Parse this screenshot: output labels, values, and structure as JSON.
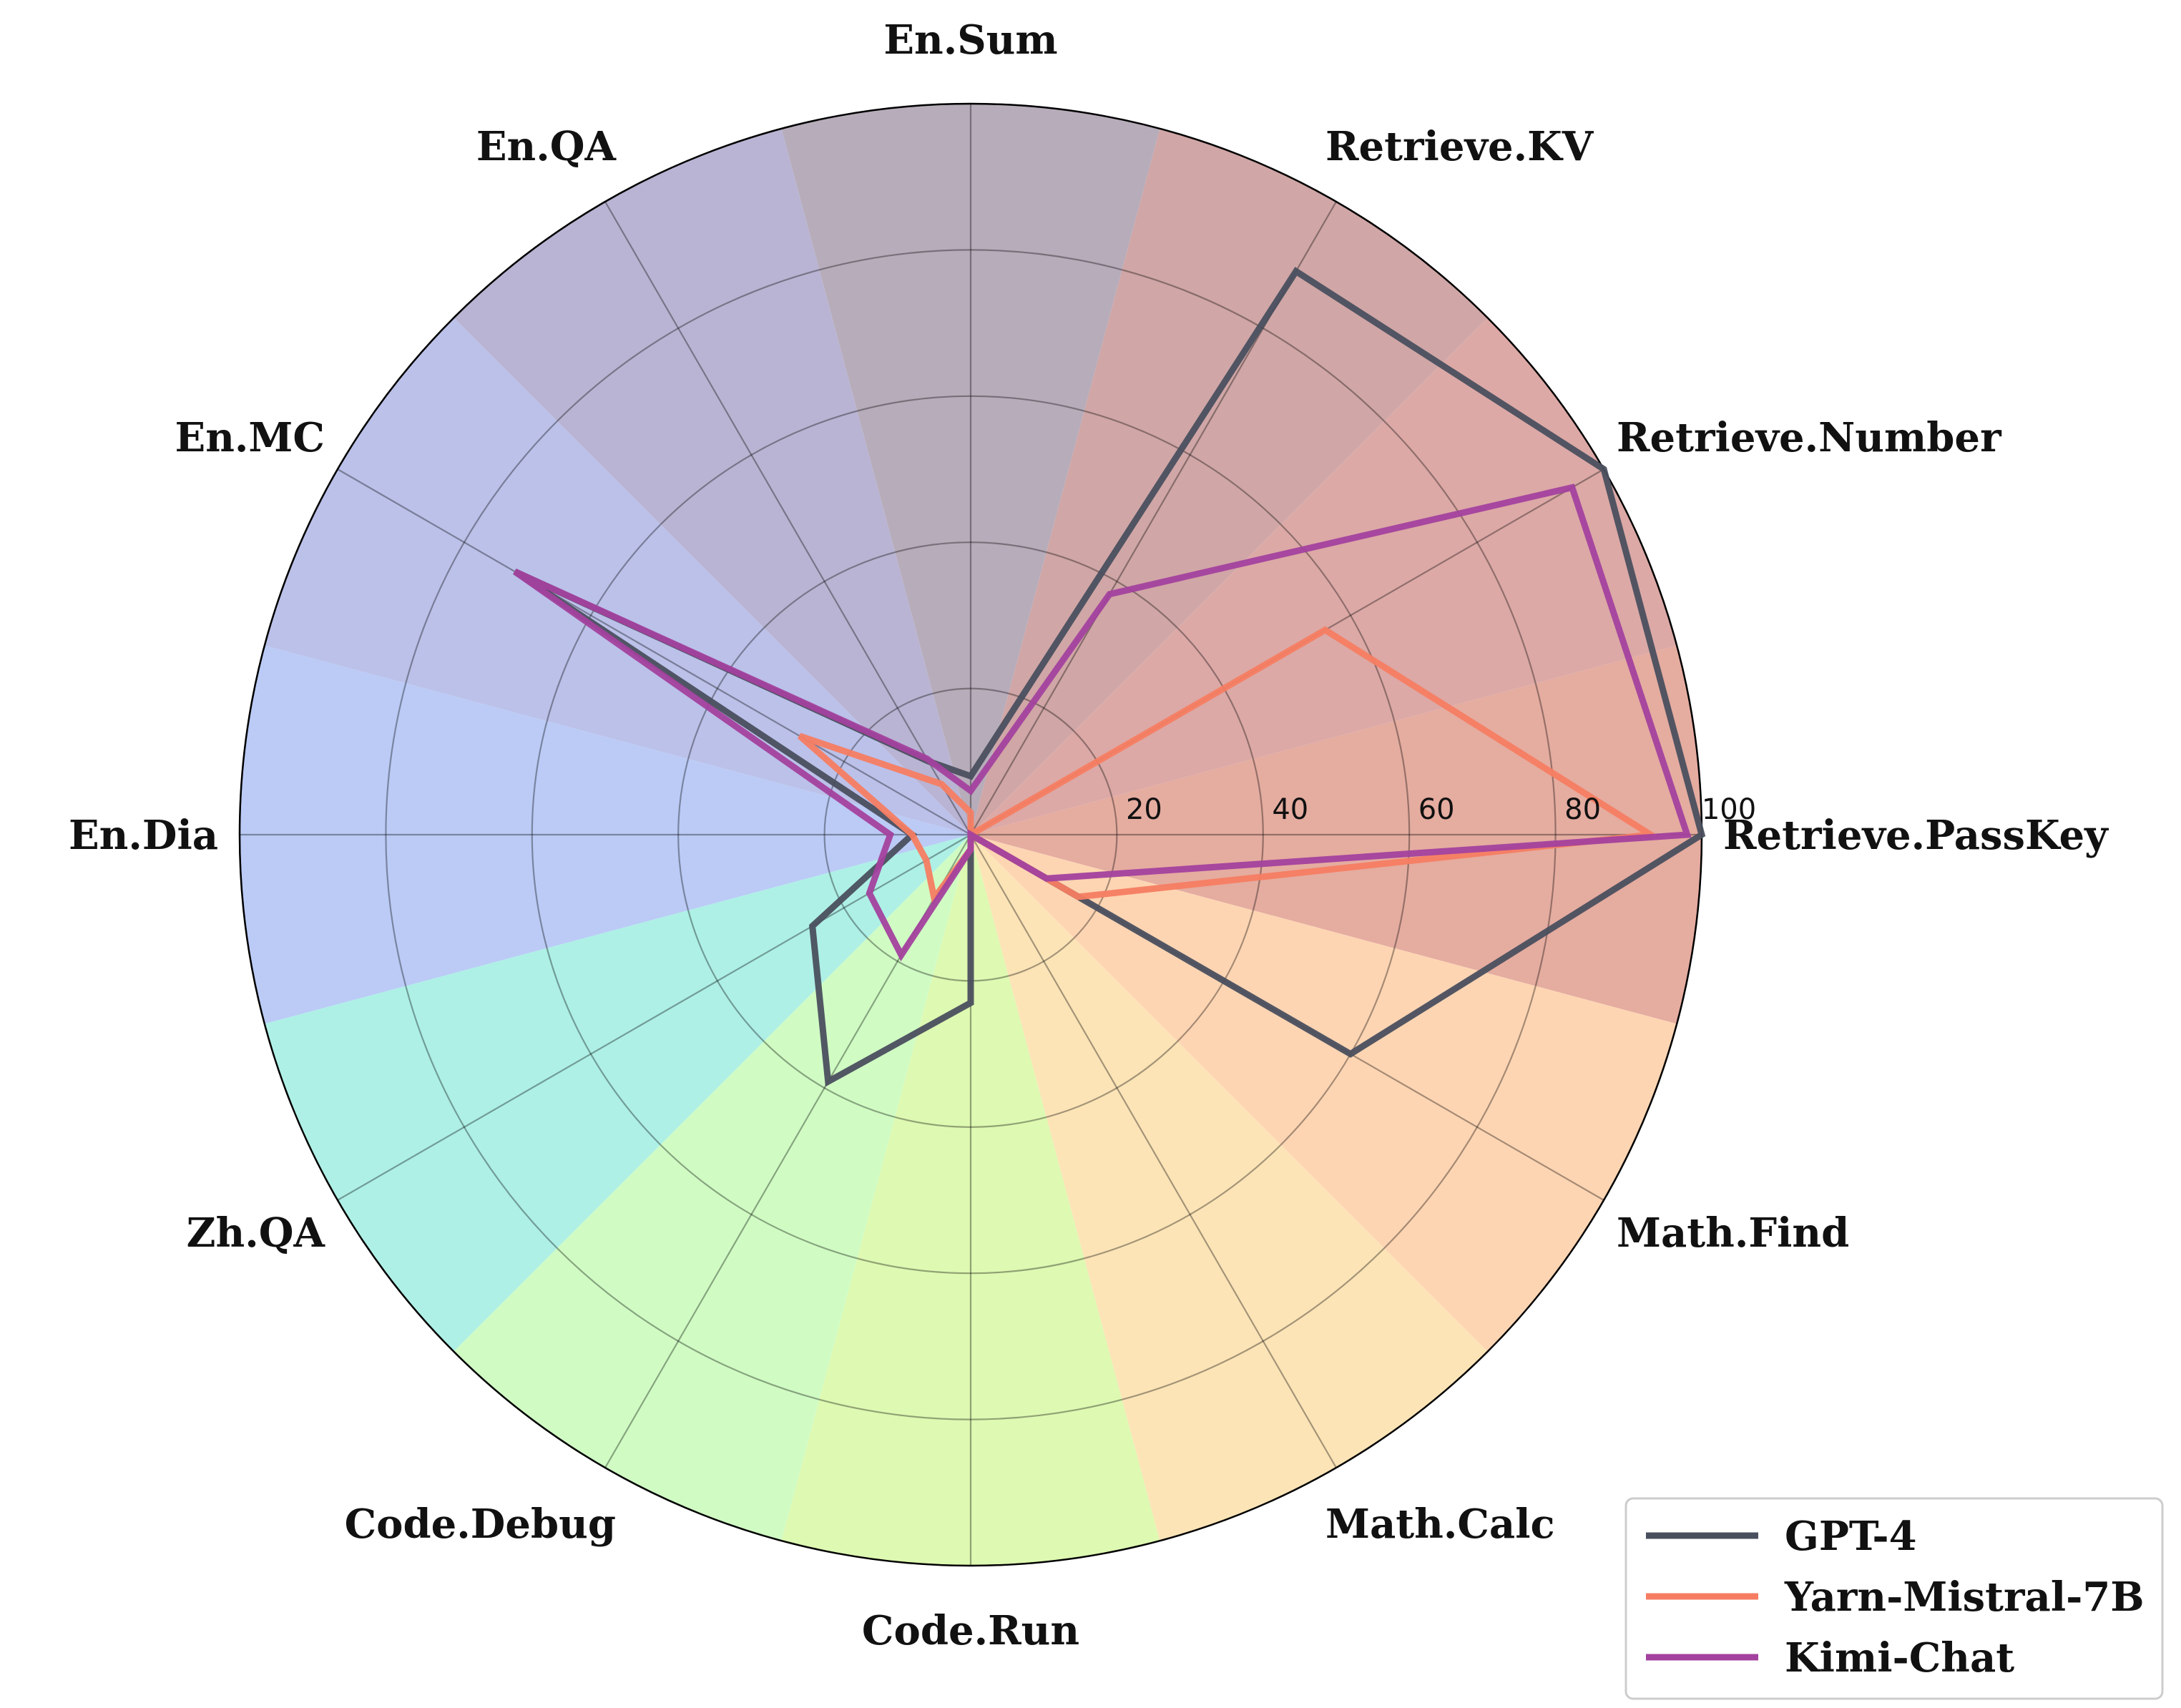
{
  "chart_data": {
    "type": "radar",
    "categories": [
      "Retrieve.PassKey",
      "Retrieve.Number",
      "Retrieve.KV",
      "En.Sum",
      "En.QA",
      "En.MC",
      "En.Dia",
      "Zh.QA",
      "Code.Debug",
      "Code.Run",
      "Math.Calc",
      "Math.Find"
    ],
    "rlim": [
      0,
      100
    ],
    "r_ticks": [
      "20",
      "40",
      "60",
      "80",
      "100"
    ],
    "series": [
      {
        "name": "GPT-4",
        "color": "#4a4f5e",
        "values": [
          100,
          100,
          89.0,
          8.0,
          11.6,
          72.0,
          8.0,
          25.0,
          39.0,
          23.0,
          0.0,
          60.0
        ]
      },
      {
        "name": "Yarn-Mistral-7B",
        "color": "#f67d62",
        "values": [
          93.0,
          56.0,
          0.0,
          3.0,
          8.0,
          27.0,
          8.0,
          7.0,
          10.0,
          2.0,
          0.0,
          17.0
        ]
      },
      {
        "name": "Kimi-Chat",
        "color": "#a3419e",
        "values": [
          98.0,
          95.0,
          38.0,
          6.0,
          12.0,
          72.0,
          11.0,
          16.0,
          19.0,
          2.0,
          0.0,
          12.0
        ]
      }
    ],
    "sector_colors": [
      "#e5aca0",
      "#dca9a6",
      "#d0a6a6",
      "#b7acba",
      "#b9b4d3",
      "#bbc1e9",
      "#bbcbf6",
      "#aef0e6",
      "#d0fcc4",
      "#def9b2",
      "#fce4b7",
      "#fdd5b3"
    ],
    "grid": true,
    "legend_position": "bottom-right"
  }
}
